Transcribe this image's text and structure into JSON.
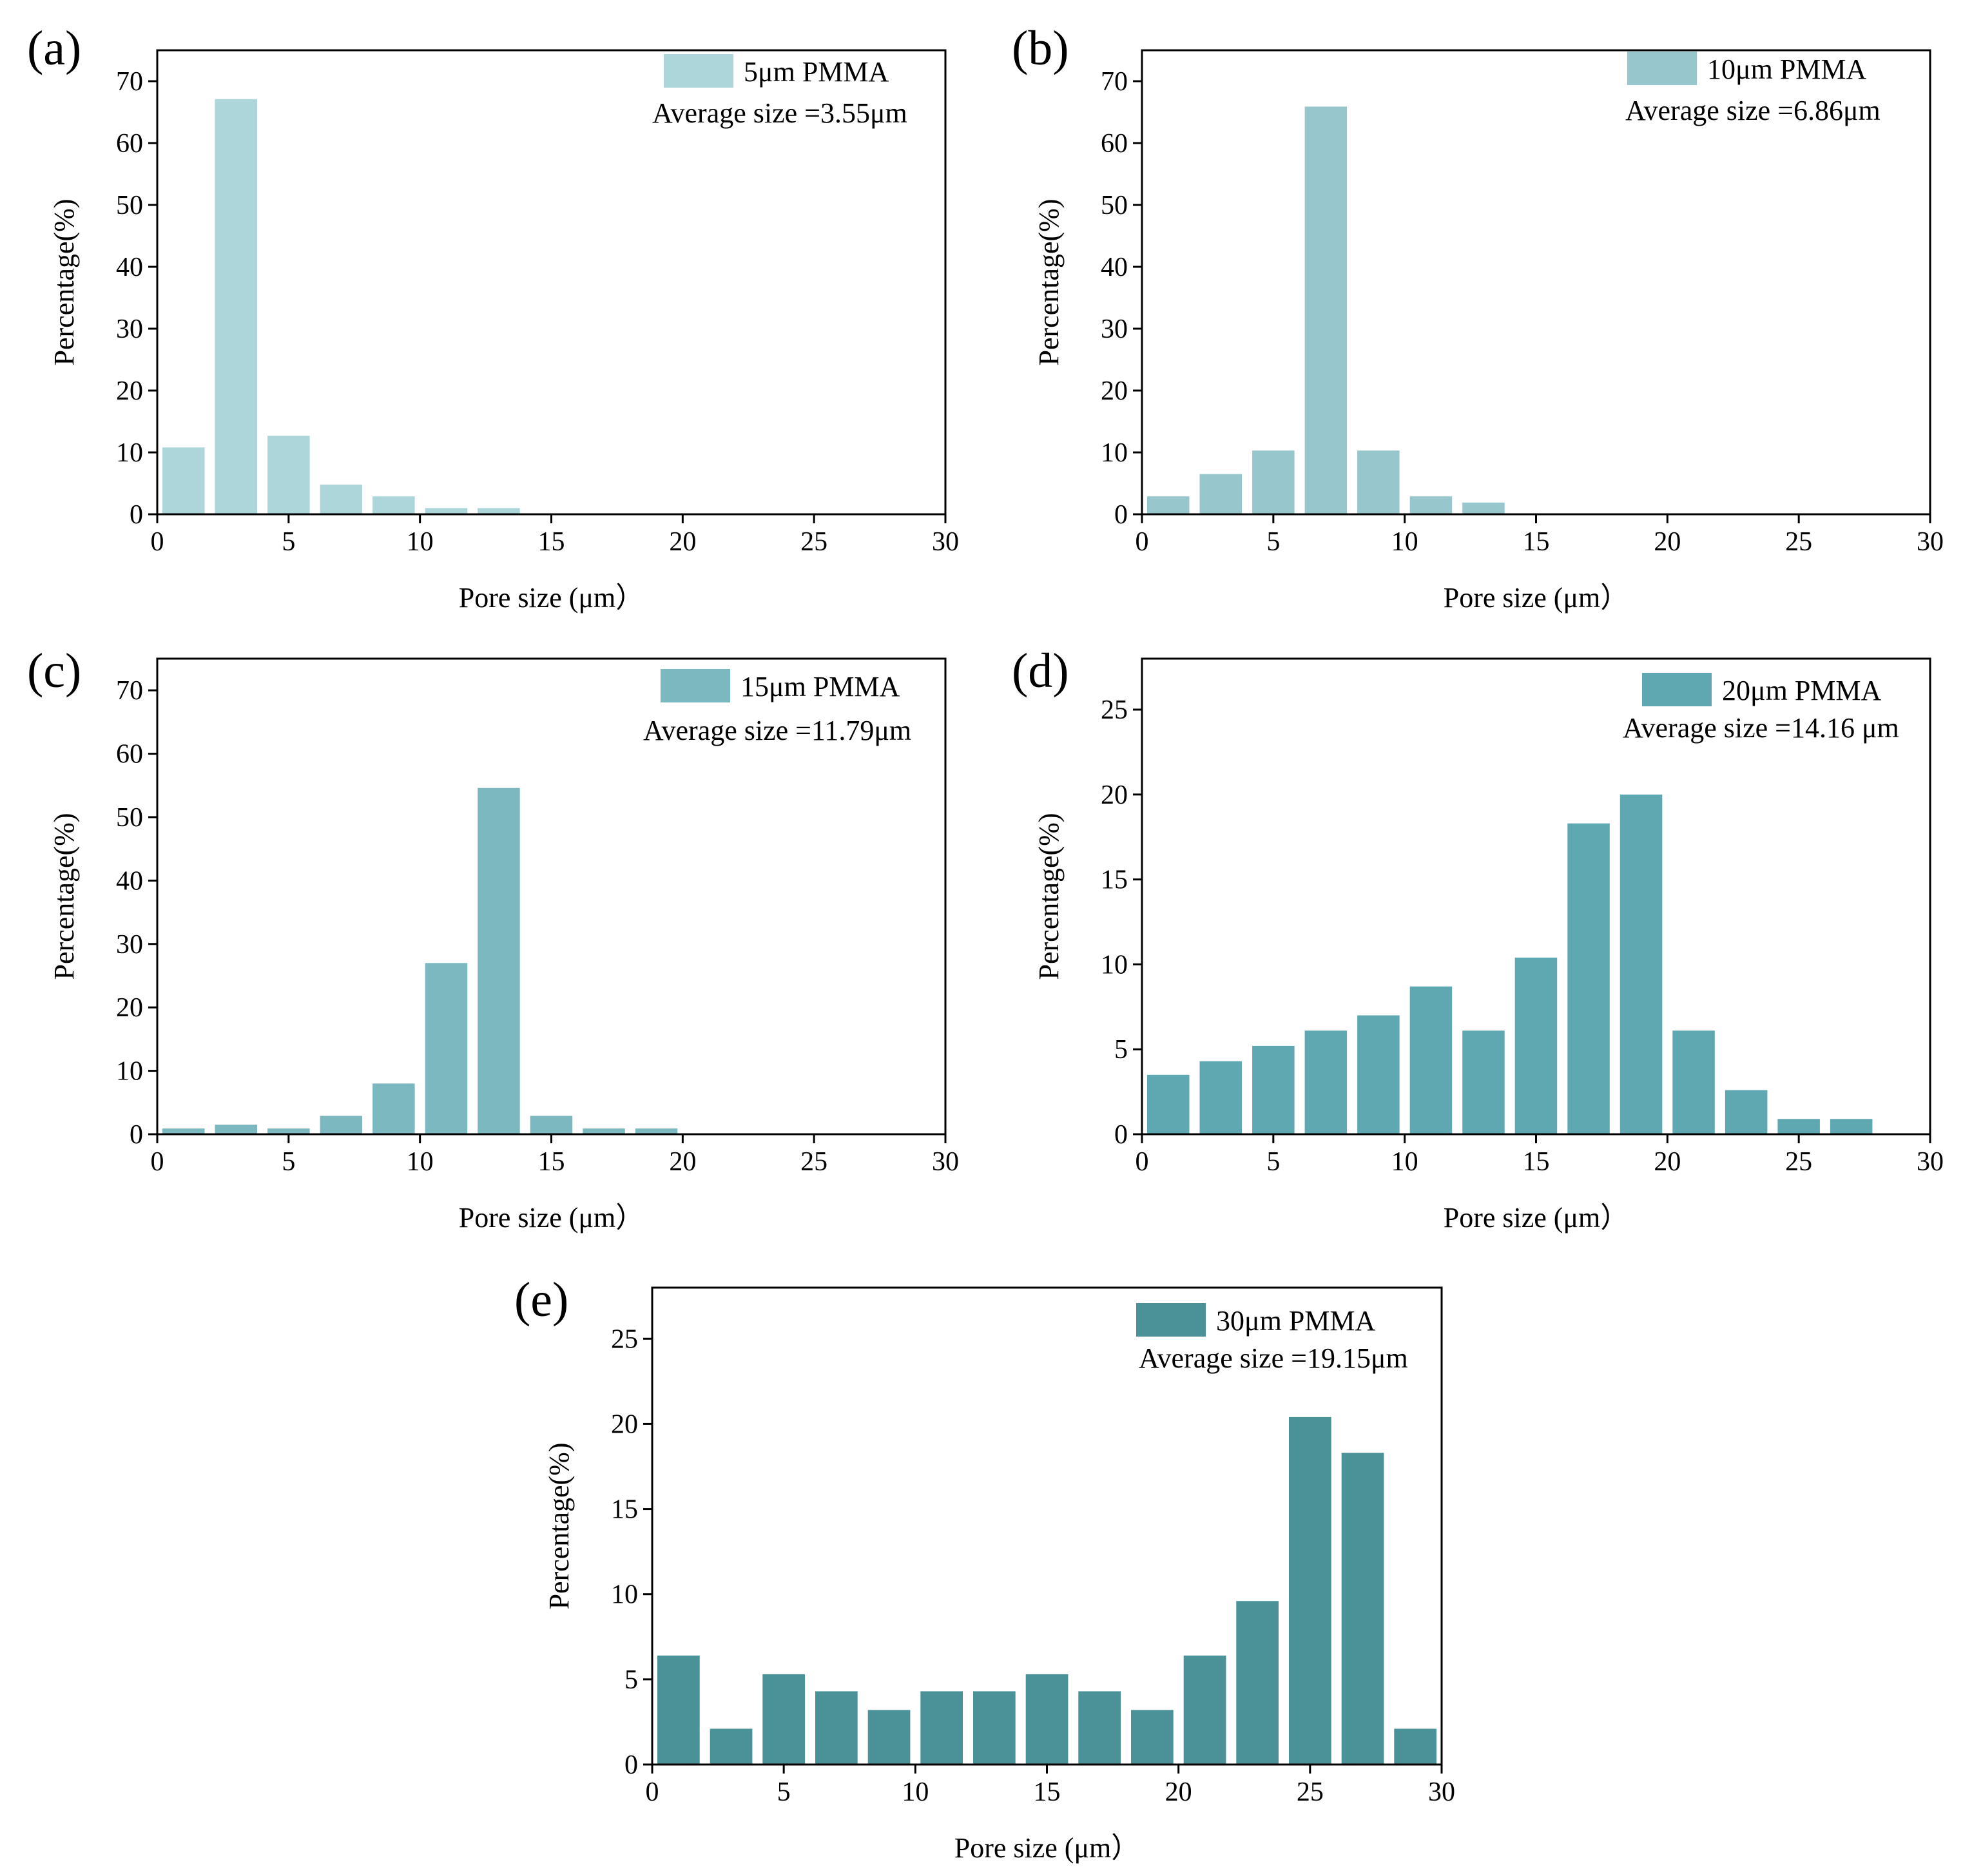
{
  "chart_data": [
    {
      "type": "bar",
      "panel_label": "(a)",
      "legend": "5μm PMMA",
      "annotation": "Average size =3.55μm",
      "xlabel": "Pore size (μm）",
      "ylabel": "Percentage(%)",
      "xlim": [
        0,
        30
      ],
      "ylim": [
        0,
        75
      ],
      "xticks": [
        0,
        5,
        10,
        15,
        20,
        25,
        30
      ],
      "yticks": [
        0,
        10,
        20,
        30,
        40,
        50,
        60,
        70
      ],
      "bin_centers": [
        1,
        3,
        5,
        7,
        9,
        11,
        13
      ],
      "values": [
        10.8,
        67.1,
        12.7,
        4.8,
        2.9,
        1.0,
        1.0
      ],
      "color": "#acd6da"
    },
    {
      "type": "bar",
      "panel_label": "(b)",
      "legend": "10μm PMMA",
      "annotation": "Average size =6.86μm",
      "xlabel": "Pore size (μm）",
      "ylabel": "Percentage(%)",
      "xlim": [
        0,
        30
      ],
      "ylim": [
        0,
        75
      ],
      "xticks": [
        0,
        5,
        10,
        15,
        20,
        25,
        30
      ],
      "yticks": [
        0,
        10,
        20,
        30,
        40,
        50,
        60,
        70
      ],
      "bin_centers": [
        1,
        3,
        5,
        7,
        9,
        11,
        13
      ],
      "values": [
        2.9,
        6.5,
        10.3,
        65.9,
        10.3,
        2.9,
        1.9
      ],
      "color": "#97c7cc"
    },
    {
      "type": "bar",
      "panel_label": "(c)",
      "legend": "15μm PMMA",
      "annotation": "Average size =11.79μm",
      "xlabel": "Pore size (μm）",
      "ylabel": "Percentage(%)",
      "xlim": [
        0,
        30
      ],
      "ylim": [
        0,
        75
      ],
      "xticks": [
        0,
        5,
        10,
        15,
        20,
        25,
        30
      ],
      "yticks": [
        0,
        10,
        20,
        30,
        40,
        50,
        60,
        70
      ],
      "bin_centers": [
        1,
        3,
        5,
        7,
        9,
        11,
        13,
        15,
        17,
        19
      ],
      "values": [
        0.9,
        1.5,
        0.9,
        2.9,
        8.0,
        27.0,
        54.6,
        2.9,
        0.9,
        0.9
      ],
      "color": "#7cb8bf"
    },
    {
      "type": "bar",
      "panel_label": "(d)",
      "legend": "20μm PMMA",
      "annotation": "Average size =14.16 μm",
      "xlabel": "Pore size (μm）",
      "ylabel": "Percentage(%)",
      "xlim": [
        0,
        30
      ],
      "ylim": [
        0,
        28
      ],
      "xticks": [
        0,
        5,
        10,
        15,
        20,
        25,
        30
      ],
      "yticks": [
        0,
        5,
        10,
        15,
        20,
        25
      ],
      "bin_centers": [
        1,
        3,
        5,
        7,
        9,
        11,
        13,
        15,
        17,
        19,
        21,
        23,
        25,
        27
      ],
      "values": [
        3.5,
        4.3,
        5.2,
        6.1,
        7.0,
        8.7,
        6.1,
        10.4,
        18.3,
        20.0,
        6.1,
        2.6,
        0.9,
        0.9
      ],
      "color": "#5fa8b1"
    },
    {
      "type": "bar",
      "panel_label": "(e)",
      "legend": "30μm PMMA",
      "annotation": "Average size =19.15μm",
      "xlabel": "Pore size (μm）",
      "ylabel": "Percentage(%)",
      "xlim": [
        0,
        30
      ],
      "ylim": [
        0,
        28
      ],
      "xticks": [
        0,
        5,
        10,
        15,
        20,
        25,
        30
      ],
      "yticks": [
        0,
        5,
        10,
        15,
        20,
        25
      ],
      "bin_centers": [
        1,
        3,
        5,
        7,
        9,
        11,
        13,
        15,
        17,
        19,
        21,
        23,
        25,
        27,
        29
      ],
      "values": [
        6.4,
        2.1,
        5.3,
        4.3,
        3.2,
        4.3,
        4.3,
        5.3,
        4.3,
        3.2,
        6.4,
        9.6,
        20.4,
        18.3,
        2.1
      ],
      "color": "#4a9198"
    }
  ]
}
